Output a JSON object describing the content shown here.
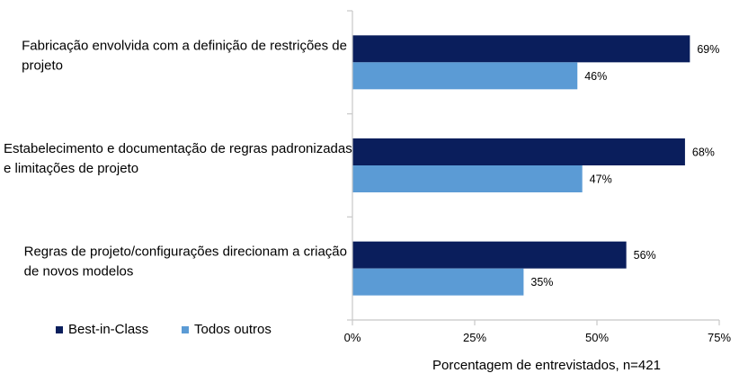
{
  "chart_data": {
    "type": "bar",
    "orientation": "horizontal",
    "categories": [
      [
        "Fabricação envolvida com a definição de restrições de",
        "projeto"
      ],
      [
        "Estabelecimento e documentação de regras padronizadas",
        "e limitações de projeto"
      ],
      [
        "Regras de projeto/configurações direcionam a criação",
        "de novos modelos"
      ]
    ],
    "series": [
      {
        "name": "Best-in-Class",
        "color": "#0a1e5c",
        "values": [
          69,
          68,
          56
        ]
      },
      {
        "name": "Todos outros",
        "color": "#5b9bd5",
        "values": [
          46,
          47,
          35
        ]
      }
    ],
    "value_suffix": "%",
    "xlim": [
      0,
      75
    ],
    "xticks": [
      0,
      25,
      50,
      75
    ],
    "xtick_labels": [
      "0%",
      "25%",
      "50%",
      "75%"
    ],
    "xlabel": "Porcentagem de entrevistados, n=421",
    "ylabel": "",
    "title": "",
    "legend_position": "bottom-left",
    "grid": false
  }
}
